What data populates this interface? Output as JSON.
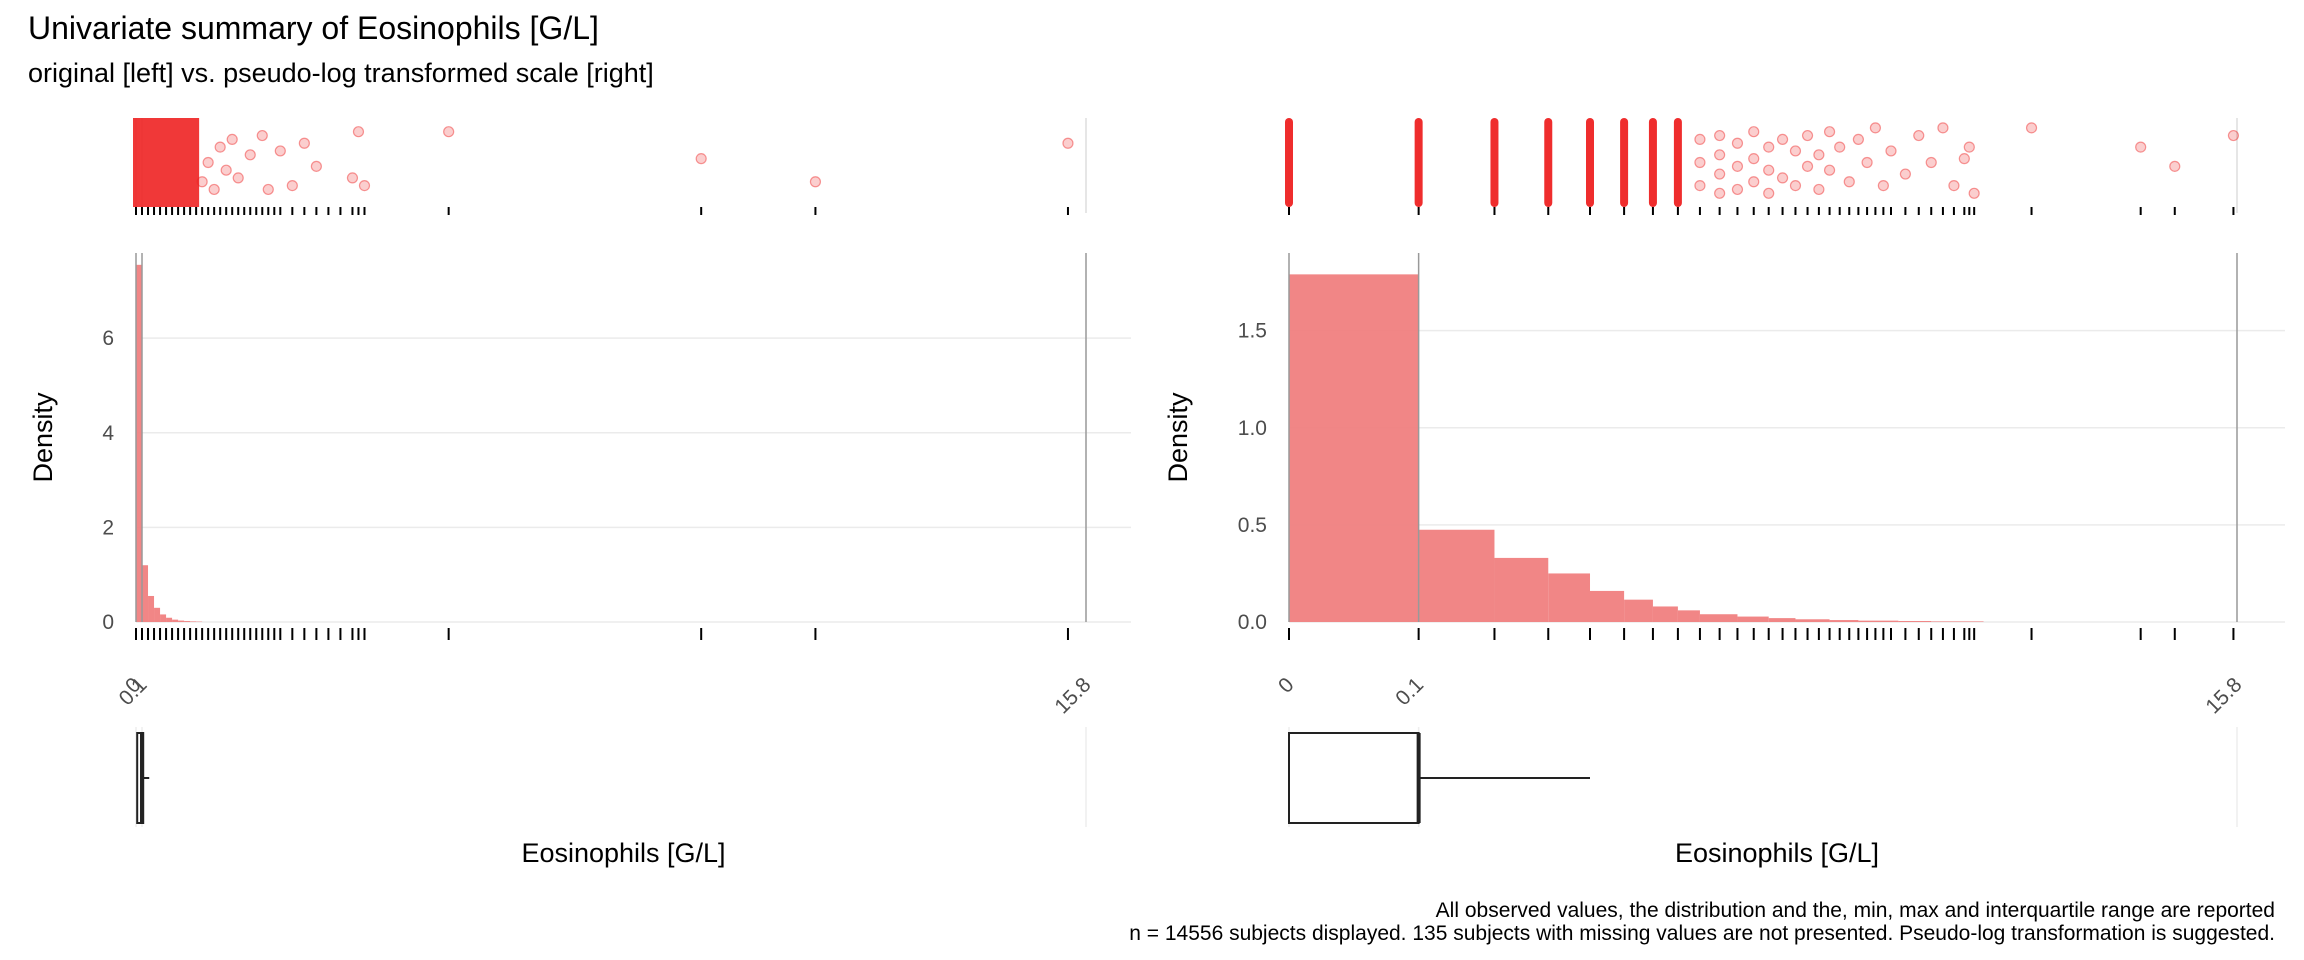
{
  "header": {
    "title": "Univariate summary of Eosinophils [G/L]",
    "subtitle": "original [left] vs. pseudo-log transformed scale [right]"
  },
  "footer": {
    "caption_line1": "All observed values, the distribution and the, min, max and interquartile range are reported",
    "caption_line2": "n = 14556 subjects displayed. 135 subjects with missing values are not presented. Pseudo-log transformation is suggested."
  },
  "colors": {
    "fill": "#f08080",
    "point": "#ee2222",
    "grid": "#ebebeb",
    "text": "#4d4d4d"
  },
  "chart_data": [
    {
      "panel": "original",
      "type": "histogram",
      "xlabel": "Eosinophils [G/L]",
      "ylabel": "Density",
      "x_range": [
        0,
        15.8
      ],
      "y_range": [
        0,
        7.8
      ],
      "x_ticks": [
        0,
        0.1,
        15.8
      ],
      "x_tick_labels": [
        "0",
        "0.1",
        "15.8"
      ],
      "y_ticks": [
        0,
        2,
        4,
        6
      ],
      "bin_width": 0.1,
      "bins": [
        {
          "x0": 0.0,
          "x1": 0.1,
          "density": 7.55
        },
        {
          "x0": 0.1,
          "x1": 0.2,
          "density": 1.2
        },
        {
          "x0": 0.2,
          "x1": 0.3,
          "density": 0.55
        },
        {
          "x0": 0.3,
          "x1": 0.4,
          "density": 0.3
        },
        {
          "x0": 0.4,
          "x1": 0.5,
          "density": 0.16
        },
        {
          "x0": 0.5,
          "x1": 0.6,
          "density": 0.09
        },
        {
          "x0": 0.6,
          "x1": 0.7,
          "density": 0.05
        },
        {
          "x0": 0.7,
          "x1": 0.8,
          "density": 0.03
        },
        {
          "x0": 0.8,
          "x1": 0.9,
          "density": 0.02
        },
        {
          "x0": 0.9,
          "x1": 1.0,
          "density": 0.012
        },
        {
          "x0": 1.0,
          "x1": 1.1,
          "density": 0.008
        }
      ],
      "vlines": [
        0,
        0.1,
        15.8
      ],
      "rug_values": [
        0,
        0.1,
        0.2,
        0.3,
        0.4,
        0.5,
        0.6,
        0.7,
        0.8,
        0.9,
        1.0,
        1.1,
        1.2,
        1.3,
        1.4,
        1.5,
        1.6,
        1.7,
        1.8,
        1.9,
        2.0,
        2.1,
        2.2,
        2.3,
        2.4,
        2.6,
        2.8,
        3.0,
        3.2,
        3.4,
        3.6,
        3.7,
        3.8,
        5.2,
        9.4,
        11.3,
        15.5
      ],
      "outliers": [
        {
          "x": 1.1,
          "y": 0.75
        },
        {
          "x": 1.2,
          "y": 0.5
        },
        {
          "x": 1.3,
          "y": 0.85
        },
        {
          "x": 1.4,
          "y": 0.3
        },
        {
          "x": 1.5,
          "y": 0.6
        },
        {
          "x": 1.6,
          "y": 0.2
        },
        {
          "x": 1.7,
          "y": 0.7
        },
        {
          "x": 1.9,
          "y": 0.4
        },
        {
          "x": 2.1,
          "y": 0.15
        },
        {
          "x": 2.2,
          "y": 0.85
        },
        {
          "x": 2.4,
          "y": 0.35
        },
        {
          "x": 2.6,
          "y": 0.8
        },
        {
          "x": 2.8,
          "y": 0.25
        },
        {
          "x": 3.0,
          "y": 0.55
        },
        {
          "x": 3.6,
          "y": 0.7
        },
        {
          "x": 3.7,
          "y": 0.1
        },
        {
          "x": 3.8,
          "y": 0.8
        },
        {
          "x": 5.2,
          "y": 0.1
        },
        {
          "x": 9.4,
          "y": 0.45
        },
        {
          "x": 11.3,
          "y": 0.75
        },
        {
          "x": 15.5,
          "y": 0.25
        }
      ],
      "boxplot": {
        "min": 0,
        "q1": 0.02,
        "median": 0.1,
        "q3": 0.1,
        "whisker_high": 0.22
      }
    },
    {
      "panel": "pseudo-log",
      "type": "histogram",
      "xlabel": "Eosinophils [G/L]",
      "ylabel": "Density",
      "x_range": [
        0,
        15.8
      ],
      "y_range": [
        0,
        1.9
      ],
      "x_ticks": [
        0,
        0.1,
        15.8
      ],
      "x_tick_labels": [
        "0",
        "0.1",
        "15.8"
      ],
      "y_ticks": [
        0,
        0.5,
        1.0,
        1.5
      ],
      "y_tick_labels": [
        "0.0",
        "0.5",
        "1.0",
        "1.5"
      ],
      "bins": [
        {
          "x0": 0.0,
          "x1": 0.1,
          "density": 1.79
        },
        {
          "x0": 0.1,
          "x1": 0.2,
          "density": 0.475
        },
        {
          "x0": 0.2,
          "x1": 0.3,
          "density": 0.33
        },
        {
          "x0": 0.3,
          "x1": 0.4,
          "density": 0.25
        },
        {
          "x0": 0.4,
          "x1": 0.5,
          "density": 0.16
        },
        {
          "x0": 0.5,
          "x1": 0.6,
          "density": 0.115
        },
        {
          "x0": 0.6,
          "x1": 0.7,
          "density": 0.08
        },
        {
          "x0": 0.7,
          "x1": 0.8,
          "density": 0.06
        },
        {
          "x0": 0.8,
          "x1": 1.0,
          "density": 0.04
        },
        {
          "x0": 1.0,
          "x1": 1.2,
          "density": 0.028
        },
        {
          "x0": 1.2,
          "x1": 1.4,
          "density": 0.02
        },
        {
          "x0": 1.4,
          "x1": 1.7,
          "density": 0.014
        },
        {
          "x0": 1.7,
          "x1": 2.0,
          "density": 0.01
        },
        {
          "x0": 2.0,
          "x1": 2.5,
          "density": 0.007
        },
        {
          "x0": 2.5,
          "x1": 3.0,
          "density": 0.005
        },
        {
          "x0": 3.0,
          "x1": 4.0,
          "density": 0.003
        }
      ],
      "vlines": [
        0,
        0.1,
        15.8
      ],
      "rug_values": [
        0,
        0.1,
        0.2,
        0.3,
        0.4,
        0.5,
        0.6,
        0.7,
        0.8,
        0.9,
        1.0,
        1.1,
        1.2,
        1.3,
        1.4,
        1.5,
        1.6,
        1.7,
        1.8,
        1.9,
        2.0,
        2.1,
        2.2,
        2.3,
        2.4,
        2.6,
        2.8,
        3.0,
        3.2,
        3.4,
        3.6,
        3.7,
        3.8,
        5.2,
        9.4,
        11.3,
        15.5
      ],
      "stripes": [
        0,
        0.1,
        0.2,
        0.3,
        0.4,
        0.5,
        0.6,
        0.7
      ],
      "outliers": [
        {
          "x": 0.8,
          "y": 0.2
        },
        {
          "x": 0.8,
          "y": 0.5
        },
        {
          "x": 0.8,
          "y": 0.8
        },
        {
          "x": 0.9,
          "y": 0.15
        },
        {
          "x": 0.9,
          "y": 0.4
        },
        {
          "x": 0.9,
          "y": 0.65
        },
        {
          "x": 0.9,
          "y": 0.9
        },
        {
          "x": 1.0,
          "y": 0.25
        },
        {
          "x": 1.0,
          "y": 0.55
        },
        {
          "x": 1.0,
          "y": 0.85
        },
        {
          "x": 1.1,
          "y": 0.1
        },
        {
          "x": 1.1,
          "y": 0.45
        },
        {
          "x": 1.1,
          "y": 0.75
        },
        {
          "x": 1.2,
          "y": 0.3
        },
        {
          "x": 1.2,
          "y": 0.6
        },
        {
          "x": 1.2,
          "y": 0.9
        },
        {
          "x": 1.3,
          "y": 0.2
        },
        {
          "x": 1.3,
          "y": 0.7
        },
        {
          "x": 1.4,
          "y": 0.35
        },
        {
          "x": 1.4,
          "y": 0.8
        },
        {
          "x": 1.5,
          "y": 0.15
        },
        {
          "x": 1.5,
          "y": 0.55
        },
        {
          "x": 1.6,
          "y": 0.4
        },
        {
          "x": 1.6,
          "y": 0.85
        },
        {
          "x": 1.7,
          "y": 0.1
        },
        {
          "x": 1.7,
          "y": 0.6
        },
        {
          "x": 1.8,
          "y": 0.3
        },
        {
          "x": 1.9,
          "y": 0.75
        },
        {
          "x": 2.0,
          "y": 0.2
        },
        {
          "x": 2.1,
          "y": 0.5
        },
        {
          "x": 2.2,
          "y": 0.05
        },
        {
          "x": 2.3,
          "y": 0.8
        },
        {
          "x": 2.4,
          "y": 0.35
        },
        {
          "x": 2.6,
          "y": 0.65
        },
        {
          "x": 2.8,
          "y": 0.15
        },
        {
          "x": 3.0,
          "y": 0.5
        },
        {
          "x": 3.2,
          "y": 0.05
        },
        {
          "x": 3.4,
          "y": 0.8
        },
        {
          "x": 3.6,
          "y": 0.45
        },
        {
          "x": 3.7,
          "y": 0.3
        },
        {
          "x": 3.8,
          "y": 0.9
        },
        {
          "x": 5.2,
          "y": 0.05
        },
        {
          "x": 9.4,
          "y": 0.3
        },
        {
          "x": 11.3,
          "y": 0.55
        },
        {
          "x": 15.5,
          "y": 0.15
        }
      ],
      "boxplot": {
        "min": 0,
        "q1": 0,
        "median": 0.1,
        "q3": 0.1,
        "whisker_high": 0.4
      }
    }
  ]
}
